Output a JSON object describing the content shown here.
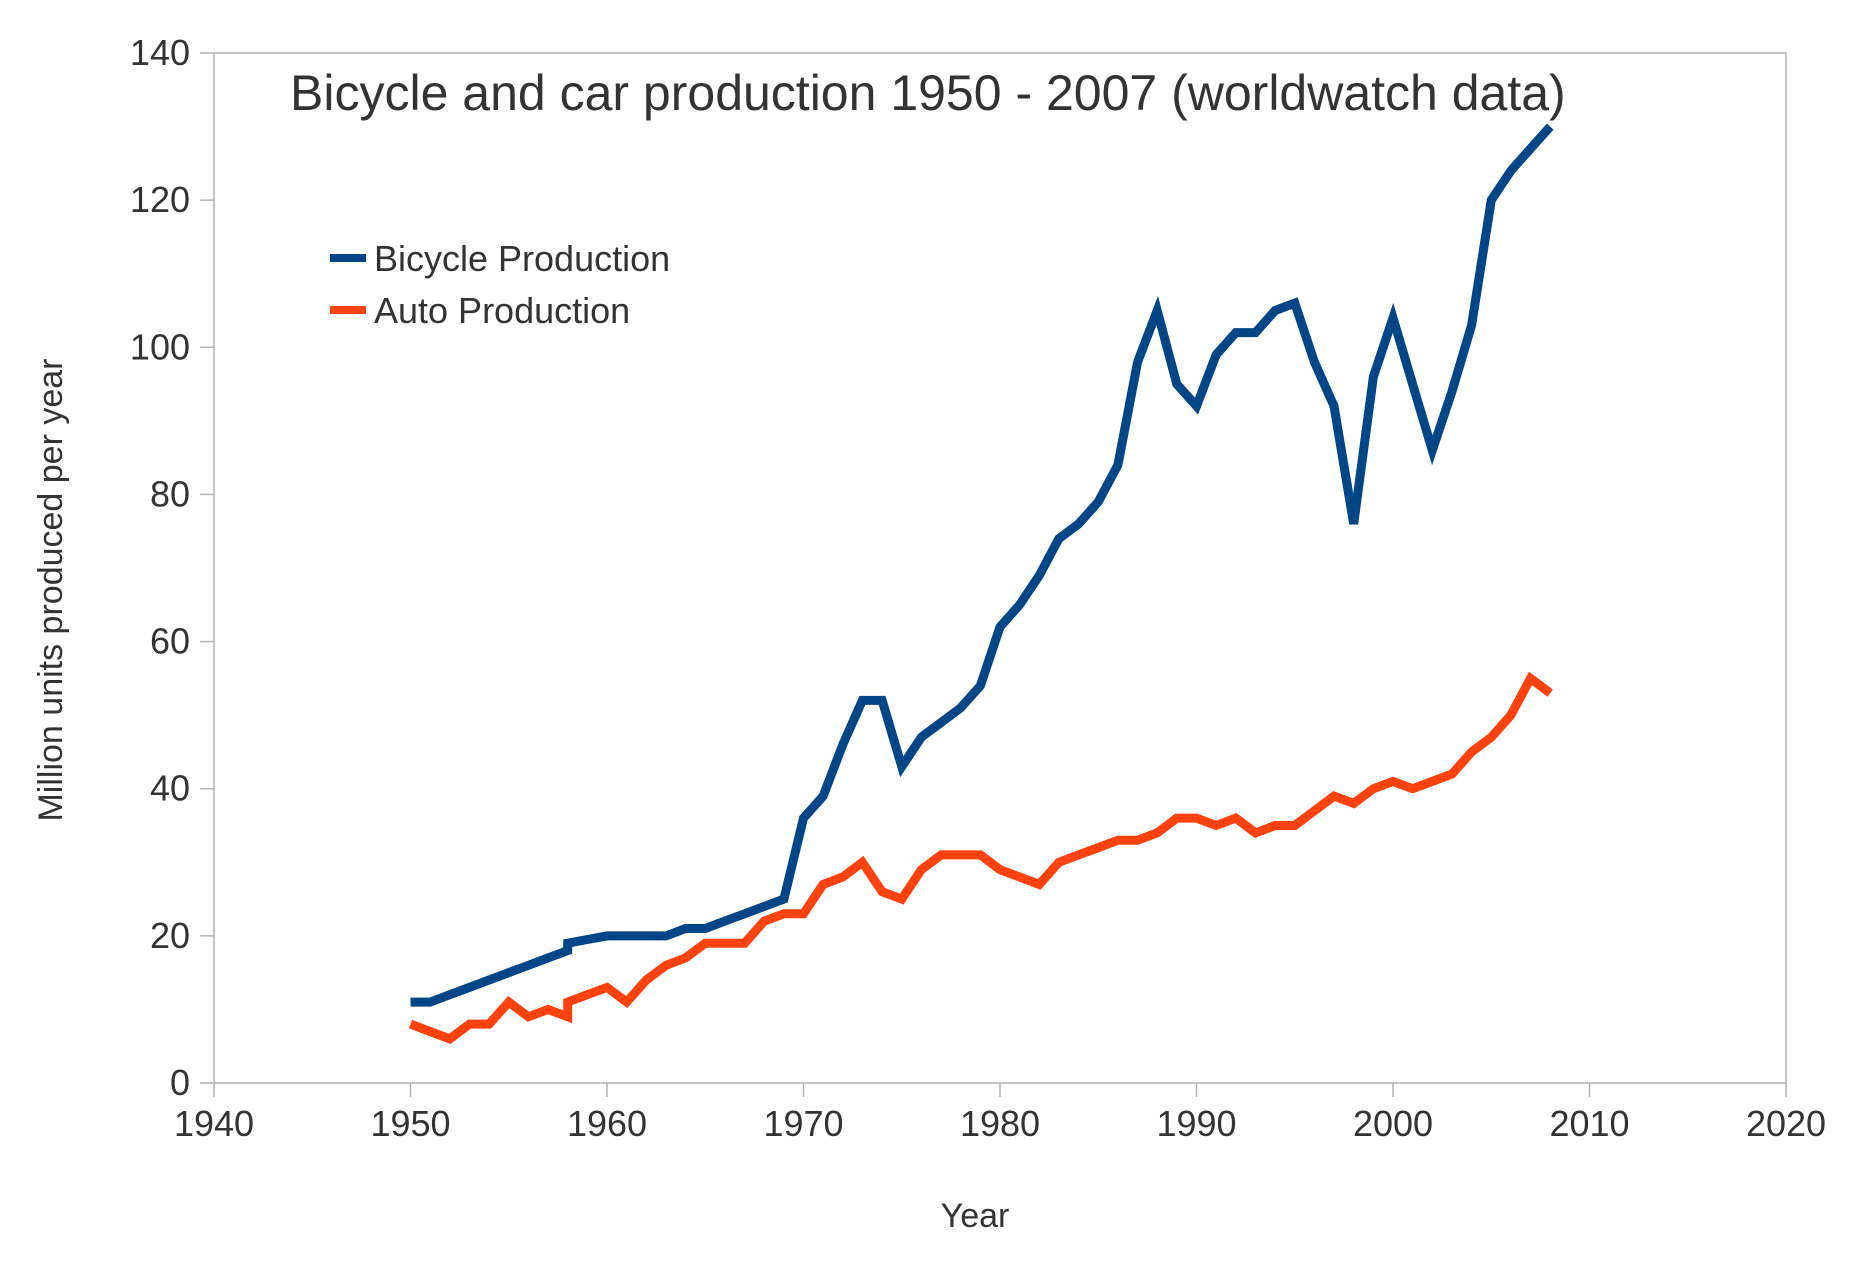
{
  "chart_data": {
    "type": "line",
    "title": "Bicycle and car production 1950 - 2007 (worldwatch data)",
    "xlabel": "Year",
    "ylabel": "Million units produced per year",
    "xlim": [
      1940,
      2020
    ],
    "ylim": [
      0,
      140
    ],
    "xticks": [
      1940,
      1950,
      1960,
      1970,
      1980,
      1990,
      2000,
      2010,
      2020
    ],
    "yticks": [
      0,
      20,
      40,
      60,
      80,
      100,
      120,
      140
    ],
    "grid": false,
    "legend_position": "top-left",
    "series": [
      {
        "name": "Bicycle Production",
        "color": "#004586",
        "points": [
          [
            1950,
            11
          ],
          [
            1951,
            11
          ],
          [
            1952,
            12
          ],
          [
            1953,
            13
          ],
          [
            1954,
            14
          ],
          [
            1955,
            15
          ],
          [
            1956,
            16
          ],
          [
            1957,
            17
          ],
          [
            1958,
            18
          ],
          [
            1958,
            19
          ],
          [
            1959,
            19.5
          ],
          [
            1960,
            20
          ],
          [
            1961,
            20
          ],
          [
            1962,
            20
          ],
          [
            1963,
            20
          ],
          [
            1964,
            21
          ],
          [
            1965,
            21
          ],
          [
            1966,
            22
          ],
          [
            1967,
            23
          ],
          [
            1968,
            24
          ],
          [
            1969,
            25
          ],
          [
            1970,
            36
          ],
          [
            1971,
            39
          ],
          [
            1972,
            46
          ],
          [
            1973,
            52
          ],
          [
            1974,
            52
          ],
          [
            1975,
            43
          ],
          [
            1976,
            47
          ],
          [
            1977,
            49
          ],
          [
            1978,
            51
          ],
          [
            1979,
            54
          ],
          [
            1980,
            62
          ],
          [
            1981,
            65
          ],
          [
            1982,
            69
          ],
          [
            1983,
            74
          ],
          [
            1984,
            76
          ],
          [
            1985,
            79
          ],
          [
            1986,
            84
          ],
          [
            1987,
            98
          ],
          [
            1988,
            105
          ],
          [
            1989,
            95
          ],
          [
            1990,
            92
          ],
          [
            1991,
            99
          ],
          [
            1992,
            102
          ],
          [
            1993,
            102
          ],
          [
            1994,
            105
          ],
          [
            1995,
            106
          ],
          [
            1996,
            98
          ],
          [
            1997,
            92
          ],
          [
            1998,
            76
          ],
          [
            1999,
            96
          ],
          [
            2000,
            104
          ],
          [
            2001,
            95
          ],
          [
            2002,
            86
          ],
          [
            2003,
            94
          ],
          [
            2004,
            103
          ],
          [
            2005,
            120
          ],
          [
            2006,
            124
          ],
          [
            2007,
            127
          ],
          [
            2008,
            130
          ]
        ]
      },
      {
        "name": "Auto Production",
        "color": "#ff420e",
        "points": [
          [
            1950,
            8
          ],
          [
            1951,
            7
          ],
          [
            1952,
            6
          ],
          [
            1953,
            8
          ],
          [
            1954,
            8
          ],
          [
            1955,
            11
          ],
          [
            1956,
            9
          ],
          [
            1957,
            10
          ],
          [
            1958,
            9
          ],
          [
            1958,
            11
          ],
          [
            1959,
            12
          ],
          [
            1960,
            13
          ],
          [
            1961,
            11
          ],
          [
            1962,
            14
          ],
          [
            1963,
            16
          ],
          [
            1964,
            17
          ],
          [
            1965,
            19
          ],
          [
            1966,
            19
          ],
          [
            1967,
            19
          ],
          [
            1968,
            22
          ],
          [
            1969,
            23
          ],
          [
            1970,
            23
          ],
          [
            1971,
            27
          ],
          [
            1972,
            28
          ],
          [
            1973,
            30
          ],
          [
            1974,
            26
          ],
          [
            1975,
            25
          ],
          [
            1976,
            29
          ],
          [
            1977,
            31
          ],
          [
            1978,
            31
          ],
          [
            1979,
            31
          ],
          [
            1980,
            29
          ],
          [
            1981,
            28
          ],
          [
            1982,
            27
          ],
          [
            1983,
            30
          ],
          [
            1984,
            31
          ],
          [
            1985,
            32
          ],
          [
            1986,
            33
          ],
          [
            1987,
            33
          ],
          [
            1988,
            34
          ],
          [
            1989,
            36
          ],
          [
            1990,
            36
          ],
          [
            1991,
            35
          ],
          [
            1992,
            36
          ],
          [
            1993,
            34
          ],
          [
            1994,
            35
          ],
          [
            1995,
            35
          ],
          [
            1996,
            37
          ],
          [
            1997,
            39
          ],
          [
            1998,
            38
          ],
          [
            1999,
            40
          ],
          [
            2000,
            41
          ],
          [
            2001,
            40
          ],
          [
            2002,
            41
          ],
          [
            2003,
            42
          ],
          [
            2004,
            45
          ],
          [
            2005,
            47
          ],
          [
            2006,
            50
          ],
          [
            2007,
            55
          ],
          [
            2008,
            53
          ]
        ]
      }
    ]
  }
}
